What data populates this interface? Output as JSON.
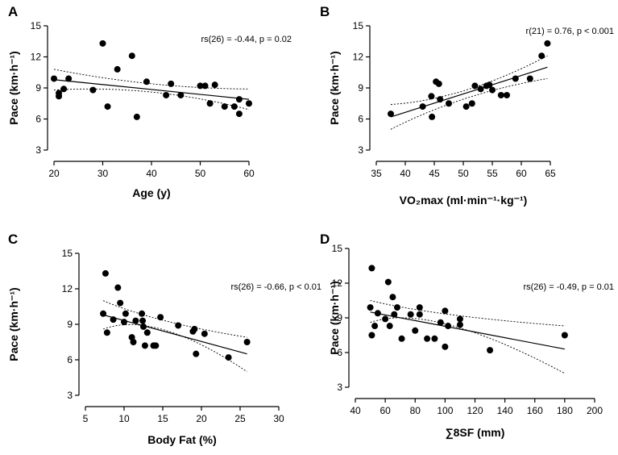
{
  "chart_data": [
    {
      "type": "scatter",
      "panel_label": "A",
      "title": "",
      "xlabel": "Age (y)",
      "ylabel": "Pace (km·h⁻¹)",
      "xlim": [
        20,
        60
      ],
      "ylim": [
        3,
        15
      ],
      "xticks": [
        20,
        30,
        40,
        50,
        60
      ],
      "yticks": [
        3,
        6,
        9,
        12,
        15
      ],
      "annotation": "rs(26) = -0.44, p = 0.02",
      "points": [
        [
          20,
          9.9
        ],
        [
          21,
          8.5
        ],
        [
          21,
          8.2
        ],
        [
          22,
          8.9
        ],
        [
          23,
          9.9
        ],
        [
          28,
          8.8
        ],
        [
          30,
          13.3
        ],
        [
          31,
          7.2
        ],
        [
          33,
          10.8
        ],
        [
          36,
          12.1
        ],
        [
          37,
          6.2
        ],
        [
          39,
          9.6
        ],
        [
          43,
          8.3
        ],
        [
          44,
          9.4
        ],
        [
          46,
          8.3
        ],
        [
          50,
          9.2
        ],
        [
          51,
          9.2
        ],
        [
          52,
          7.5
        ],
        [
          53,
          9.3
        ],
        [
          55,
          7.2
        ],
        [
          57,
          7.2
        ],
        [
          58,
          6.5
        ],
        [
          58,
          7.9
        ],
        [
          60,
          7.5
        ]
      ],
      "fit": [
        [
          20,
          9.8
        ],
        [
          60,
          7.9
        ]
      ],
      "ci_upper": [
        [
          20,
          10.8
        ],
        [
          40,
          9.4
        ],
        [
          60,
          8.9
        ]
      ],
      "ci_lower": [
        [
          20,
          8.8
        ],
        [
          40,
          8.6
        ],
        [
          60,
          6.9
        ]
      ]
    },
    {
      "type": "scatter",
      "panel_label": "B",
      "title": "",
      "xlabel": "VO₂max (ml·min⁻¹·kg⁻¹)",
      "ylabel": "Pace (km·h⁻¹)",
      "xlim": [
        35,
        65
      ],
      "ylim": [
        3,
        15
      ],
      "xticks": [
        35,
        40,
        45,
        50,
        55,
        60,
        65
      ],
      "yticks": [
        3,
        6,
        9,
        12,
        15
      ],
      "annotation": "r(21) = 0.76, p < 0.001",
      "points": [
        [
          37.5,
          6.5
        ],
        [
          43,
          7.2
        ],
        [
          44.5,
          8.2
        ],
        [
          44.6,
          6.2
        ],
        [
          45.3,
          9.6
        ],
        [
          45.8,
          9.4
        ],
        [
          46,
          7.9
        ],
        [
          47.5,
          7.5
        ],
        [
          50.5,
          7.2
        ],
        [
          51.5,
          7.5
        ],
        [
          52,
          9.2
        ],
        [
          53,
          8.9
        ],
        [
          54,
          9.2
        ],
        [
          54.5,
          9.3
        ],
        [
          55,
          8.8
        ],
        [
          56.5,
          8.3
        ],
        [
          57.5,
          8.3
        ],
        [
          59,
          9.9
        ],
        [
          61.5,
          9.9
        ],
        [
          63.5,
          12.1
        ],
        [
          64.5,
          13.3
        ]
      ],
      "fit": [
        [
          37.5,
          6.2
        ],
        [
          64.5,
          11.0
        ]
      ],
      "ci_upper": [
        [
          37.5,
          7.4
        ],
        [
          50,
          8.8
        ],
        [
          64.5,
          12.1
        ]
      ],
      "ci_lower": [
        [
          37.5,
          5.0
        ],
        [
          50,
          8.0
        ],
        [
          64.5,
          9.9
        ]
      ]
    },
    {
      "type": "scatter",
      "panel_label": "C",
      "title": "",
      "xlabel": "Body Fat (%)",
      "ylabel": "Pace (km·h⁻¹)",
      "xlim": [
        5,
        30
      ],
      "ylim": [
        3,
        15
      ],
      "xticks": [
        5,
        10,
        15,
        20,
        25,
        30
      ],
      "yticks": [
        3,
        6,
        9,
        12,
        15
      ],
      "annotation": "rs(26) = -0.66, p < 0.01",
      "points": [
        [
          7.3,
          9.9
        ],
        [
          7.6,
          13.3
        ],
        [
          7.8,
          8.3
        ],
        [
          8.6,
          9.4
        ],
        [
          9.2,
          12.1
        ],
        [
          9.5,
          10.8
        ],
        [
          10,
          9.2
        ],
        [
          10.2,
          9.9
        ],
        [
          11,
          7.9
        ],
        [
          11.2,
          7.5
        ],
        [
          11.5,
          9.3
        ],
        [
          12.3,
          9.9
        ],
        [
          12.4,
          9.3
        ],
        [
          12.5,
          8.8
        ],
        [
          12.7,
          7.2
        ],
        [
          13,
          8.3
        ],
        [
          13.8,
          7.2
        ],
        [
          14.1,
          7.2
        ],
        [
          14.7,
          9.6
        ],
        [
          17,
          8.9
        ],
        [
          18.9,
          8.4
        ],
        [
          19.1,
          8.6
        ],
        [
          19.3,
          6.5
        ],
        [
          20.4,
          8.2
        ],
        [
          23.5,
          6.2
        ],
        [
          25.9,
          7.5
        ]
      ],
      "fit": [
        [
          7.3,
          9.8
        ],
        [
          25.9,
          6.5
        ]
      ],
      "ci_upper": [
        [
          7.3,
          11.0
        ],
        [
          14,
          9.3
        ],
        [
          25.9,
          7.9
        ]
      ],
      "ci_lower": [
        [
          7.3,
          8.6
        ],
        [
          14,
          8.5
        ],
        [
          25.9,
          5.0
        ]
      ]
    },
    {
      "type": "scatter",
      "panel_label": "D",
      "title": "",
      "xlabel": "∑8SF (mm)",
      "ylabel": "Pace (km·h⁻¹)",
      "xlim": [
        40,
        200
      ],
      "ylim": [
        3,
        15
      ],
      "xticks": [
        40,
        60,
        80,
        100,
        120,
        140,
        160,
        180,
        200
      ],
      "yticks": [
        3,
        6,
        9,
        12,
        15
      ],
      "annotation": "rs(26) = -0.49, p = 0.01",
      "points": [
        [
          50,
          9.9
        ],
        [
          51,
          13.3
        ],
        [
          51,
          7.5
        ],
        [
          53,
          8.3
        ],
        [
          55,
          9.4
        ],
        [
          60,
          8.9
        ],
        [
          62,
          12.1
        ],
        [
          63,
          8.3
        ],
        [
          65,
          10.8
        ],
        [
          66,
          9.3
        ],
        [
          68,
          9.9
        ],
        [
          71,
          7.2
        ],
        [
          77,
          9.3
        ],
        [
          80,
          7.9
        ],
        [
          83,
          9.9
        ],
        [
          83,
          9.3
        ],
        [
          88,
          7.2
        ],
        [
          93,
          7.2
        ],
        [
          97,
          8.6
        ],
        [
          100,
          9.6
        ],
        [
          100,
          6.5
        ],
        [
          102,
          8.3
        ],
        [
          110,
          8.9
        ],
        [
          110,
          8.4
        ],
        [
          130,
          6.2
        ],
        [
          180,
          7.5
        ]
      ],
      "fit": [
        [
          50,
          9.5
        ],
        [
          180,
          6.3
        ]
      ],
      "ci_upper": [
        [
          50,
          10.5
        ],
        [
          90,
          9.3
        ],
        [
          180,
          8.3
        ]
      ],
      "ci_lower": [
        [
          50,
          8.6
        ],
        [
          90,
          8.4
        ],
        [
          180,
          4.2
        ]
      ]
    }
  ]
}
